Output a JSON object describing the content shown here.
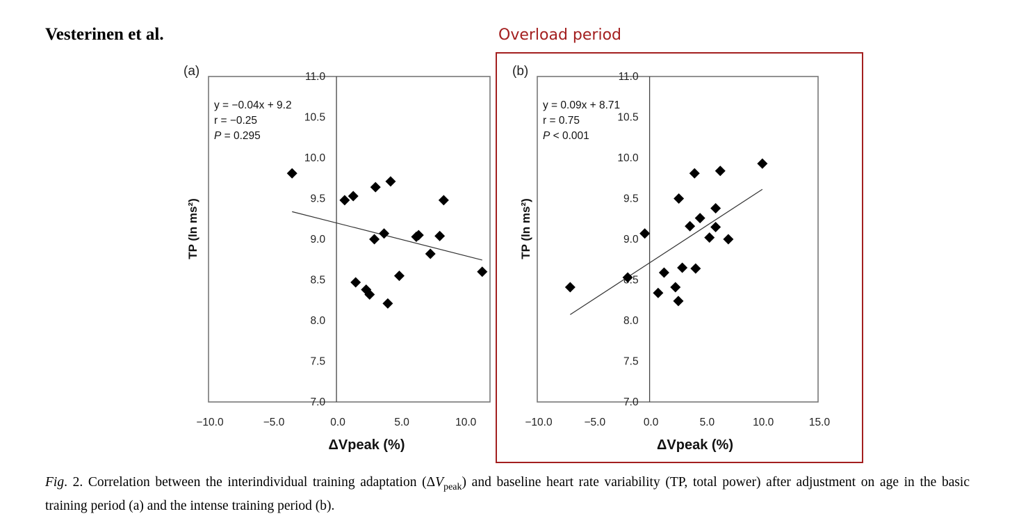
{
  "header": {
    "author": "Vesterinen et al.",
    "highlight_label": "Overload period",
    "highlight_color": "#a31f1f"
  },
  "caption": {
    "fig_label": "Fig",
    "part1": ". 2. Correlation between the interindividual training adaptation (Δ",
    "var": "V",
    "sub": "peak",
    "part2": ") and baseline heart rate variability (TP, total power) after adjustment on age in the basic training period (a) and the intense training period (b)."
  },
  "chart_data": [
    {
      "type": "scatter",
      "panel_label": "(a)",
      "xlabel": "ΔVpeak (%)",
      "ylabel": "TP (ln ms²)",
      "xlim": [
        -10,
        12
      ],
      "ylim": [
        7,
        11
      ],
      "xticks": [
        "−10.0",
        "−5.0",
        "0.0",
        "5.0",
        "10.0"
      ],
      "xtick_values": [
        -10,
        -5,
        0,
        5,
        10
      ],
      "yticks": [
        "7.0",
        "7.5",
        "8.0",
        "8.5",
        "9.0",
        "9.5",
        "10.0",
        "10.5",
        "11.0"
      ],
      "ytick_values": [
        7,
        7.5,
        8,
        8.5,
        9,
        9.5,
        10,
        10.5,
        11
      ],
      "annotations": [
        "y = −0.04x + 9.2",
        "r = −0.25",
        "= 0.295"
      ],
      "p_symbol": "P",
      "fit": {
        "slope": -0.04,
        "intercept": 9.2,
        "x_range": [
          -3.47,
          11.39
        ]
      },
      "points": [
        [
          -3.47,
          9.81
        ],
        [
          0.64,
          9.48
        ],
        [
          1.31,
          9.53
        ],
        [
          3.05,
          9.64
        ],
        [
          4.23,
          9.71
        ],
        [
          8.38,
          9.48
        ],
        [
          3.72,
          9.07
        ],
        [
          2.96,
          9.0
        ],
        [
          6.24,
          9.03
        ],
        [
          6.42,
          9.05
        ],
        [
          8.07,
          9.04
        ],
        [
          7.34,
          8.82
        ],
        [
          11.39,
          8.6
        ],
        [
          1.5,
          8.47
        ],
        [
          4.91,
          8.55
        ],
        [
          2.32,
          8.38
        ],
        [
          2.59,
          8.32
        ],
        [
          4.01,
          8.21
        ]
      ]
    },
    {
      "type": "scatter",
      "panel_label": "(b)",
      "xlabel": "ΔVpeak (%)",
      "ylabel": "TP (ln ms²)",
      "xlim": [
        -10,
        15
      ],
      "ylim": [
        7,
        11
      ],
      "xticks": [
        "−10.0",
        "−5.0",
        "0.0",
        "5.0",
        "10.0",
        "15.0"
      ],
      "xtick_values": [
        -10,
        -5,
        0,
        5,
        10,
        15
      ],
      "yticks": [
        "7.0",
        "7.5",
        "8.0",
        "8.5",
        "9.0",
        "9.5",
        "10.0",
        "10.5",
        "11.0"
      ],
      "ytick_values": [
        7,
        7.5,
        8,
        8.5,
        9,
        9.5,
        10,
        10.5,
        11
      ],
      "annotations": [
        "y = 0.09x + 8.71",
        "r = 0.75",
        "< 0.001"
      ],
      "p_symbol": "P",
      "fit": {
        "slope": 0.09,
        "intercept": 8.71,
        "x_range": [
          -7.07,
          10.04
        ]
      },
      "points": [
        [
          -7.07,
          8.41
        ],
        [
          -1.95,
          8.53
        ],
        [
          -0.43,
          9.07
        ],
        [
          0.76,
          8.34
        ],
        [
          1.29,
          8.59
        ],
        [
          2.3,
          8.41
        ],
        [
          2.56,
          8.24
        ],
        [
          2.91,
          8.65
        ],
        [
          4.1,
          8.64
        ],
        [
          2.6,
          9.5
        ],
        [
          3.59,
          9.16
        ],
        [
          4.49,
          9.26
        ],
        [
          4.0,
          9.81
        ],
        [
          5.88,
          9.38
        ],
        [
          5.88,
          9.15
        ],
        [
          5.33,
          9.02
        ],
        [
          7.01,
          9.0
        ],
        [
          6.29,
          9.84
        ],
        [
          10.04,
          9.93
        ]
      ]
    }
  ]
}
